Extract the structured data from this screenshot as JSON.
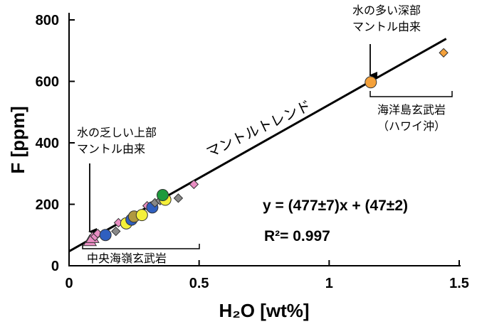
{
  "chart_data": {
    "type": "scatter",
    "xlabel": "H₂O [wt%]",
    "ylabel": "F [ppm]",
    "xlim": [
      0,
      1.5
    ],
    "ylim": [
      0,
      800
    ],
    "xticks": [
      {
        "value": 0,
        "label": "0"
      },
      {
        "value": 0.5,
        "label": "0.5"
      },
      {
        "value": 1,
        "label": "1"
      },
      {
        "value": 1.5,
        "label": "1.5"
      }
    ],
    "yticks": [
      {
        "value": 0,
        "label": "0"
      },
      {
        "value": 200,
        "label": "200"
      },
      {
        "value": 400,
        "label": "400"
      },
      {
        "value": 600,
        "label": "600"
      },
      {
        "value": 800,
        "label": "800"
      }
    ],
    "trendline": {
      "slope": 477,
      "intercept": 47,
      "x_range": [
        0,
        1.45
      ],
      "label": "マントルトレンド"
    },
    "equation": "y = (477±7)x + (47±2)",
    "r2_label": "R²= 0.997",
    "points": [
      {
        "x": 0.08,
        "y": 80,
        "shape": "triangle",
        "color": "#e98ec3"
      },
      {
        "x": 0.09,
        "y": 90,
        "shape": "triangle",
        "color": "#e98ec3"
      },
      {
        "x": 0.1,
        "y": 95,
        "shape": "diamond",
        "color": "#e98ec3"
      },
      {
        "x": 0.11,
        "y": 105,
        "shape": "diamond",
        "color": "#e98ec3"
      },
      {
        "x": 0.14,
        "y": 100,
        "shape": "circle",
        "color": "#2f5fbf"
      },
      {
        "x": 0.18,
        "y": 112,
        "shape": "diamond",
        "color": "#888888"
      },
      {
        "x": 0.19,
        "y": 140,
        "shape": "diamond",
        "color": "#e98ec3"
      },
      {
        "x": 0.22,
        "y": 138,
        "shape": "circle",
        "color": "#f5f03a"
      },
      {
        "x": 0.24,
        "y": 150,
        "shape": "circle",
        "color": "#2f5fbf"
      },
      {
        "x": 0.25,
        "y": 160,
        "shape": "circle",
        "color": "#b09840"
      },
      {
        "x": 0.28,
        "y": 165,
        "shape": "circle",
        "color": "#f5f03a"
      },
      {
        "x": 0.3,
        "y": 195,
        "shape": "diamond",
        "color": "#e98ec3"
      },
      {
        "x": 0.32,
        "y": 190,
        "shape": "circle",
        "color": "#2f5fbf"
      },
      {
        "x": 0.33,
        "y": 205,
        "shape": "diamond",
        "color": "#888888"
      },
      {
        "x": 0.35,
        "y": 212,
        "shape": "diamond",
        "color": "#888888"
      },
      {
        "x": 0.37,
        "y": 215,
        "shape": "circle",
        "color": "#f5f03a"
      },
      {
        "x": 0.36,
        "y": 230,
        "shape": "circle",
        "color": "#1e9a3c"
      },
      {
        "x": 0.42,
        "y": 220,
        "shape": "diamond",
        "color": "#888888"
      },
      {
        "x": 0.48,
        "y": 265,
        "shape": "diamond",
        "color": "#e98ec3"
      },
      {
        "x": 1.16,
        "y": 597,
        "shape": "circle",
        "color": "#f4a13b"
      },
      {
        "x": 1.44,
        "y": 693,
        "shape": "diamond",
        "color": "#f4a13b"
      }
    ],
    "annotations": {
      "depleted_label": [
        "水の乏しい上部",
        "マントル由来"
      ],
      "enriched_label": [
        "水の多い深部",
        "マントル由来"
      ],
      "morb_label": "中央海嶺玄武岩",
      "oib_label": [
        "海洋島玄武岩",
        "（ハワイ沖）"
      ]
    }
  }
}
